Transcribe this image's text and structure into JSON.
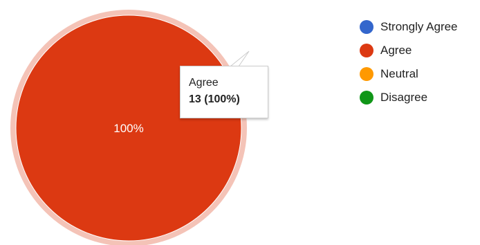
{
  "chart_data": {
    "type": "pie",
    "categories": [
      "Strongly Agree",
      "Agree",
      "Neutral",
      "Disagree"
    ],
    "values": [
      0,
      13,
      0,
      0
    ],
    "colors": [
      "#3366cc",
      "#dc3912",
      "#ff9900",
      "#109618"
    ],
    "slice_labels": [
      "",
      "100%",
      "",
      ""
    ],
    "legend_position": "right",
    "highlighted": "Agree"
  },
  "tooltip": {
    "category": "Agree",
    "value_text": "13 (100%)"
  }
}
